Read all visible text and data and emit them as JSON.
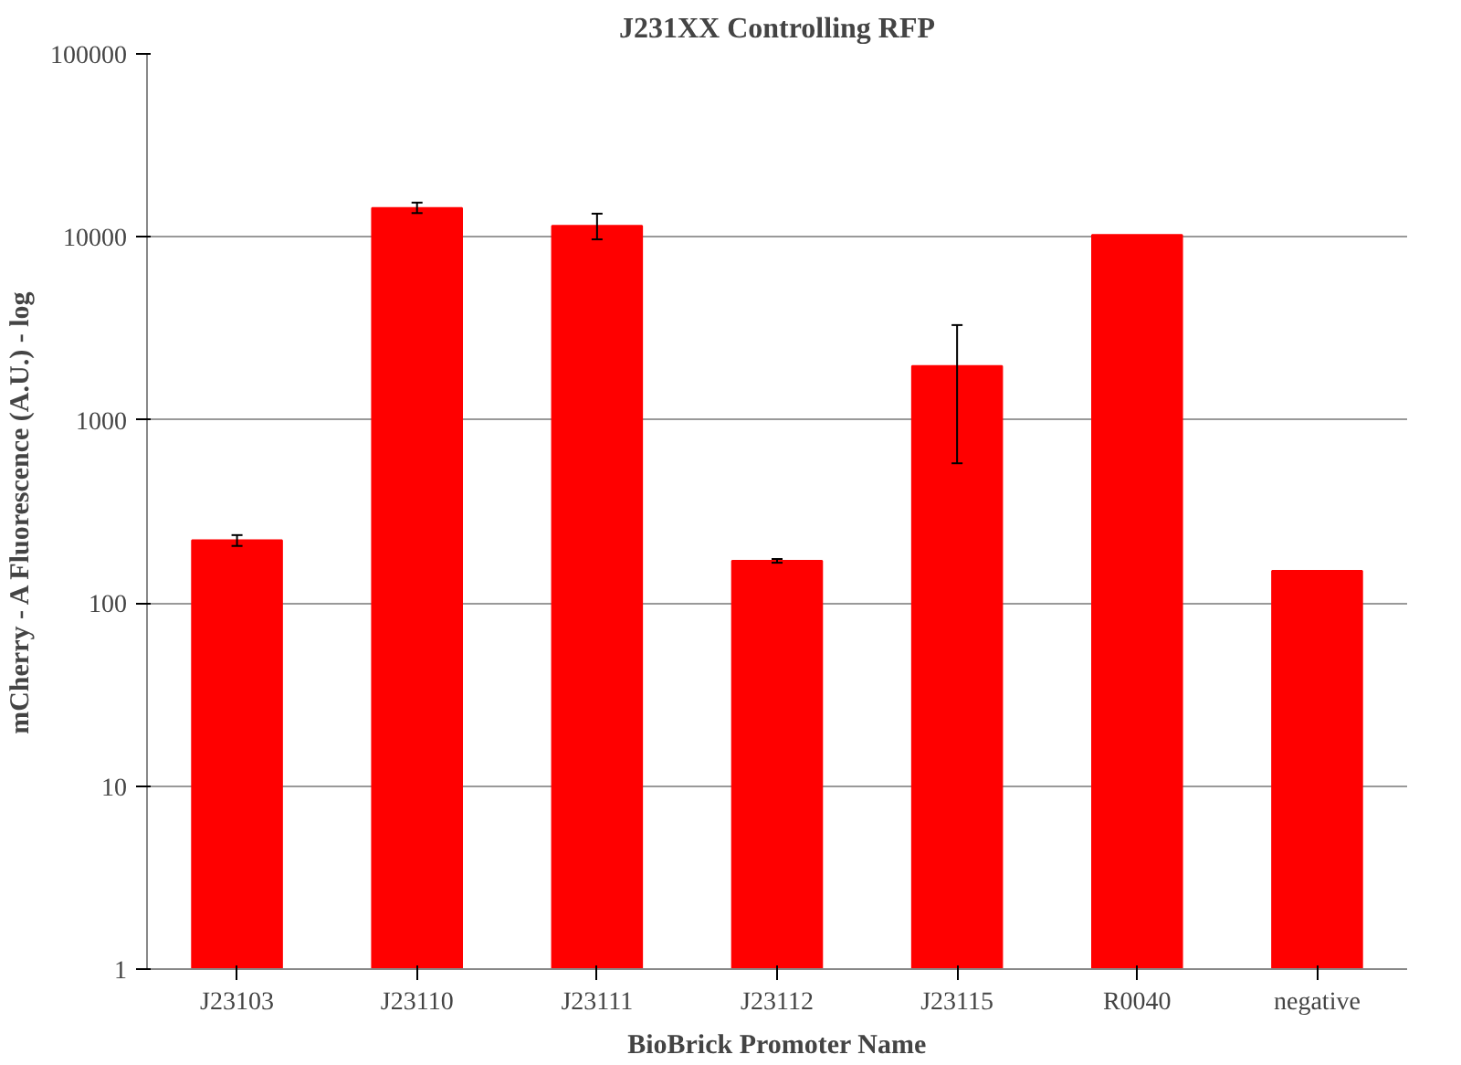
{
  "chart_data": {
    "type": "bar",
    "title": "J231XX Controlling RFP",
    "xlabel": "BioBrick Promoter Name",
    "ylabel": "mCherry - A Fluorescence (A.U.) - log",
    "categories": [
      "J23103",
      "J23110",
      "J23111",
      "J23112",
      "J23115",
      "R0040",
      "negative"
    ],
    "values": [
      220,
      14400,
      11500,
      170,
      1970,
      10250,
      150
    ],
    "errors": [
      [
        205,
        235
      ],
      [
        13500,
        15400
      ],
      [
        9700,
        13400
      ],
      [
        166,
        174
      ],
      [
        580,
        3300
      ],
      null,
      null
    ],
    "color": "#ff0000",
    "log": true,
    "ylim": [
      1,
      100000
    ],
    "yticks": [
      1,
      10,
      100,
      1000,
      10000,
      100000
    ],
    "grid": "y"
  }
}
